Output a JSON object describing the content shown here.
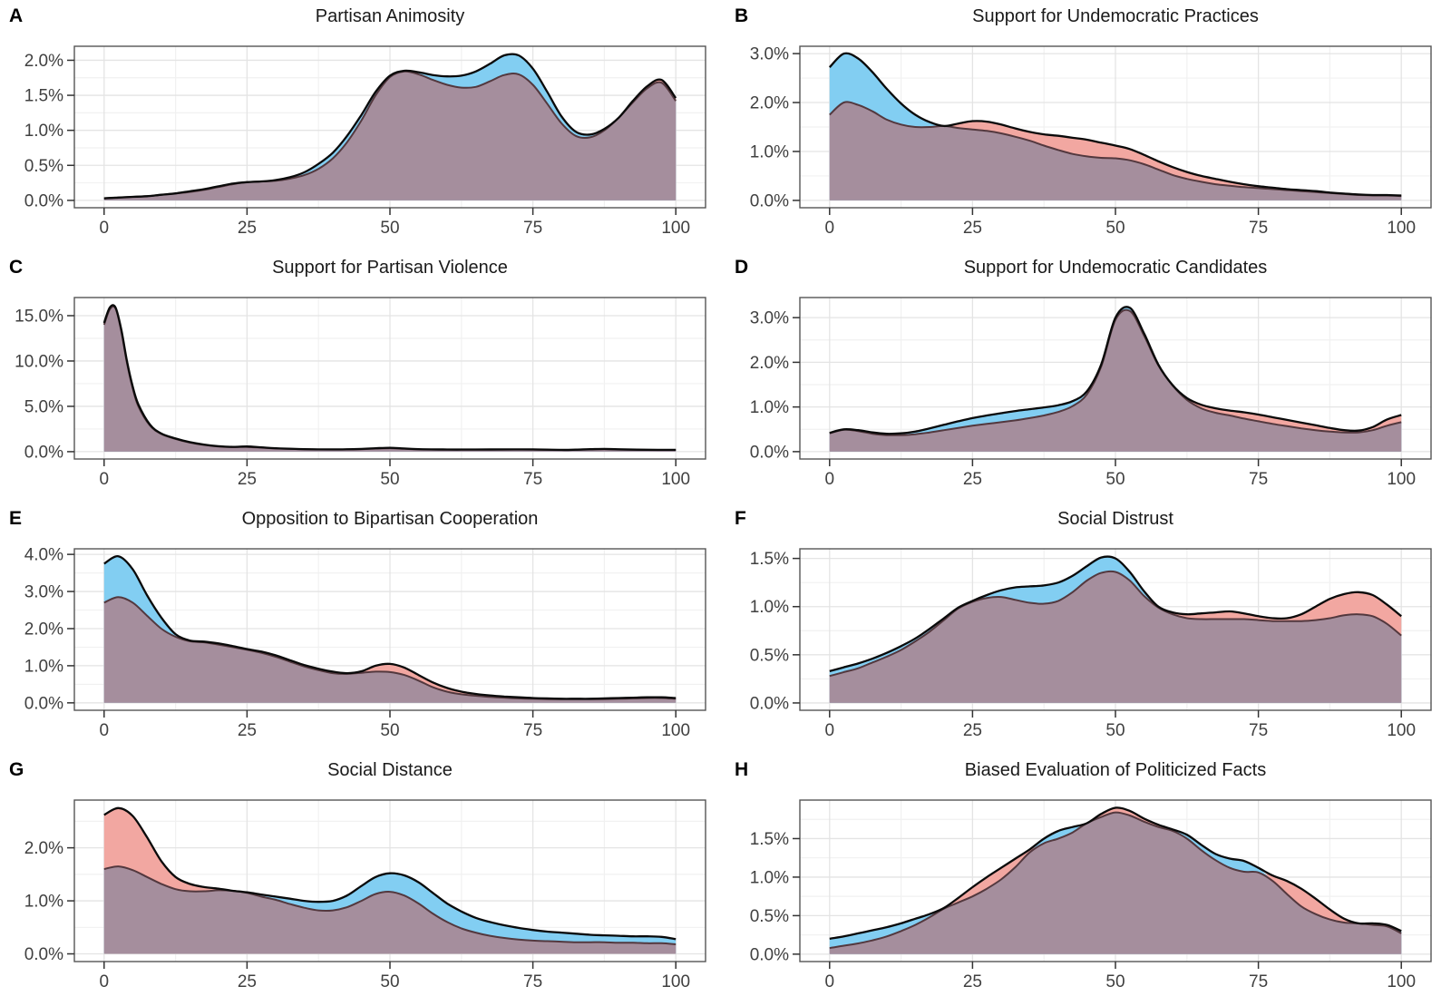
{
  "figure_title": "",
  "chart_data": {
    "type": "area",
    "subtype": "overlaid-density-distributions",
    "grid": "on",
    "legend": "none",
    "colors": {
      "blue_fill": "#82CEF2",
      "red_fill": "#F2A7A1",
      "overlap_fill": "#A58E9D",
      "upper_stroke": "#0A0A0A",
      "lower_stroke": "#53383E",
      "grid_major": "#E4E4E4",
      "grid_minor": "#F1F1F1",
      "panel_border": "#555555",
      "tick_mark": "#333333",
      "tick_label": "#404040",
      "background": "#FFFFFF"
    },
    "xlim": [
      -5.2,
      105.2
    ],
    "x_axis": {
      "domain": [
        0,
        100
      ],
      "ticks": [
        0,
        25,
        50,
        75,
        100
      ],
      "tick_labels": [
        "0",
        "25",
        "50",
        "75",
        "100"
      ],
      "minor_ticks": [
        12.5,
        37.5,
        62.5,
        87.5
      ]
    },
    "default_x": [
      0,
      2.5,
      5,
      7.5,
      10,
      12.5,
      15,
      17.5,
      20,
      22.5,
      25,
      27.5,
      30,
      32.5,
      35,
      37.5,
      40,
      42.5,
      45,
      47.5,
      50,
      52.5,
      55,
      57.5,
      60,
      62.5,
      65,
      67.5,
      70,
      72.5,
      75,
      77.5,
      80,
      82.5,
      85,
      87.5,
      90,
      92.5,
      95,
      97.5,
      100
    ],
    "series_names": [
      "blue",
      "red"
    ],
    "panels": [
      {
        "letter": "A",
        "title": "Partisan Animosity",
        "ylim": [
          -0.105,
          2.2
        ],
        "y_major": [
          0,
          0.5,
          1.0,
          1.5,
          2.0
        ],
        "y_labels": [
          "0.0%",
          "0.5%",
          "1.0%",
          "1.5%",
          "2.0%"
        ],
        "blue": [
          0.03,
          0.04,
          0.05,
          0.06,
          0.08,
          0.1,
          0.13,
          0.16,
          0.2,
          0.24,
          0.26,
          0.27,
          0.29,
          0.33,
          0.4,
          0.52,
          0.68,
          0.92,
          1.22,
          1.55,
          1.78,
          1.85,
          1.83,
          1.79,
          1.77,
          1.78,
          1.84,
          1.95,
          2.07,
          2.07,
          1.88,
          1.55,
          1.2,
          0.98,
          0.94,
          1.02,
          1.18,
          1.4,
          1.6,
          1.68,
          1.42
        ],
        "red": [
          0.03,
          0.04,
          0.05,
          0.06,
          0.08,
          0.1,
          0.12,
          0.15,
          0.19,
          0.23,
          0.26,
          0.27,
          0.28,
          0.31,
          0.36,
          0.45,
          0.6,
          0.83,
          1.14,
          1.5,
          1.76,
          1.84,
          1.8,
          1.72,
          1.65,
          1.61,
          1.62,
          1.7,
          1.79,
          1.8,
          1.65,
          1.38,
          1.1,
          0.92,
          0.9,
          1.0,
          1.18,
          1.42,
          1.63,
          1.72,
          1.46
        ]
      },
      {
        "letter": "B",
        "title": "Support for Undemocratic Practices",
        "ylim": [
          -0.15,
          3.15
        ],
        "y_major": [
          0,
          1.0,
          2.0,
          3.0
        ],
        "y_labels": [
          "0.0%",
          "1.0%",
          "2.0%",
          "3.0%"
        ],
        "blue": [
          2.72,
          3.0,
          2.9,
          2.62,
          2.28,
          1.98,
          1.75,
          1.6,
          1.52,
          1.48,
          1.45,
          1.42,
          1.37,
          1.3,
          1.22,
          1.12,
          1.03,
          0.95,
          0.9,
          0.87,
          0.86,
          0.82,
          0.74,
          0.63,
          0.52,
          0.44,
          0.38,
          0.33,
          0.3,
          0.27,
          0.25,
          0.23,
          0.21,
          0.19,
          0.17,
          0.15,
          0.13,
          0.11,
          0.1,
          0.1,
          0.09
        ],
        "red": [
          1.75,
          2.0,
          1.95,
          1.82,
          1.65,
          1.55,
          1.5,
          1.5,
          1.52,
          1.57,
          1.62,
          1.61,
          1.55,
          1.47,
          1.4,
          1.35,
          1.32,
          1.28,
          1.24,
          1.18,
          1.12,
          1.05,
          0.93,
          0.8,
          0.68,
          0.58,
          0.5,
          0.44,
          0.38,
          0.33,
          0.29,
          0.26,
          0.23,
          0.21,
          0.19,
          0.16,
          0.14,
          0.12,
          0.11,
          0.11,
          0.1
        ]
      },
      {
        "letter": "C",
        "title": "Support for Partisan Violence",
        "ylim": [
          -0.81,
          17.0
        ],
        "y_major": [
          0,
          5.0,
          10.0,
          15.0
        ],
        "y_labels": [
          "0.0%",
          "5.0%",
          "10.0%",
          "15.0%"
        ],
        "x": [
          0,
          1,
          2,
          3,
          4,
          5,
          6,
          8,
          10,
          12.5,
          15,
          17.5,
          20,
          22.5,
          25,
          27.5,
          30,
          35,
          40,
          45,
          47.5,
          50,
          52.5,
          55,
          60,
          65,
          70,
          75,
          80,
          82.5,
          85,
          87.5,
          90,
          95,
          100
        ],
        "blue": [
          14.2,
          15.9,
          15.9,
          13.5,
          10.0,
          7.2,
          5.2,
          3.0,
          2.0,
          1.45,
          1.05,
          0.78,
          0.6,
          0.53,
          0.57,
          0.48,
          0.38,
          0.28,
          0.25,
          0.3,
          0.38,
          0.43,
          0.35,
          0.28,
          0.24,
          0.24,
          0.25,
          0.25,
          0.2,
          0.22,
          0.27,
          0.3,
          0.26,
          0.21,
          0.2
        ],
        "red": [
          14.0,
          15.7,
          15.8,
          13.3,
          9.8,
          7.0,
          5.0,
          2.9,
          1.95,
          1.4,
          1.0,
          0.74,
          0.57,
          0.5,
          0.52,
          0.44,
          0.35,
          0.26,
          0.23,
          0.27,
          0.34,
          0.38,
          0.31,
          0.25,
          0.22,
          0.22,
          0.22,
          0.22,
          0.18,
          0.2,
          0.24,
          0.27,
          0.23,
          0.19,
          0.18
        ]
      },
      {
        "letter": "D",
        "title": "Support for Undemocratic Candidates",
        "ylim": [
          -0.165,
          3.45
        ],
        "y_major": [
          0,
          1.0,
          2.0,
          3.0
        ],
        "y_labels": [
          "0.0%",
          "1.0%",
          "2.0%",
          "3.0%"
        ],
        "blue": [
          0.42,
          0.5,
          0.48,
          0.43,
          0.4,
          0.41,
          0.45,
          0.52,
          0.6,
          0.68,
          0.75,
          0.81,
          0.86,
          0.91,
          0.95,
          0.99,
          1.04,
          1.13,
          1.35,
          1.95,
          3.0,
          3.22,
          2.65,
          1.95,
          1.48,
          1.16,
          0.97,
          0.87,
          0.81,
          0.74,
          0.68,
          0.62,
          0.57,
          0.52,
          0.48,
          0.45,
          0.43,
          0.43,
          0.48,
          0.58,
          0.66
        ],
        "red": [
          0.41,
          0.49,
          0.46,
          0.4,
          0.37,
          0.37,
          0.39,
          0.43,
          0.48,
          0.53,
          0.58,
          0.62,
          0.66,
          0.7,
          0.75,
          0.81,
          0.89,
          1.02,
          1.28,
          1.9,
          2.95,
          3.15,
          2.6,
          1.93,
          1.49,
          1.2,
          1.05,
          0.97,
          0.92,
          0.88,
          0.83,
          0.77,
          0.71,
          0.65,
          0.59,
          0.53,
          0.48,
          0.47,
          0.55,
          0.72,
          0.82
        ]
      },
      {
        "letter": "E",
        "title": "Opposition to Bipartisan Cooperation",
        "ylim": [
          -0.2,
          4.15
        ],
        "y_major": [
          0,
          1.0,
          2.0,
          3.0,
          4.0
        ],
        "y_labels": [
          "0.0%",
          "1.0%",
          "2.0%",
          "3.0%",
          "4.0%"
        ],
        "blue": [
          3.75,
          3.95,
          3.6,
          2.9,
          2.3,
          1.85,
          1.68,
          1.65,
          1.6,
          1.53,
          1.45,
          1.38,
          1.28,
          1.15,
          1.02,
          0.92,
          0.84,
          0.8,
          0.81,
          0.84,
          0.83,
          0.75,
          0.6,
          0.42,
          0.3,
          0.23,
          0.19,
          0.16,
          0.14,
          0.12,
          0.11,
          0.1,
          0.1,
          0.1,
          0.1,
          0.1,
          0.11,
          0.12,
          0.13,
          0.13,
          0.11
        ],
        "red": [
          2.7,
          2.85,
          2.7,
          2.35,
          2.0,
          1.78,
          1.66,
          1.63,
          1.57,
          1.5,
          1.43,
          1.35,
          1.24,
          1.11,
          0.98,
          0.88,
          0.8,
          0.78,
          0.85,
          1.0,
          1.05,
          0.95,
          0.75,
          0.55,
          0.4,
          0.3,
          0.24,
          0.2,
          0.17,
          0.15,
          0.13,
          0.12,
          0.11,
          0.11,
          0.11,
          0.12,
          0.13,
          0.14,
          0.15,
          0.15,
          0.13
        ]
      },
      {
        "letter": "F",
        "title": "Social Distrust",
        "ylim": [
          -0.076,
          1.6
        ],
        "y_major": [
          0,
          0.5,
          1.0,
          1.5
        ],
        "y_labels": [
          "0.0%",
          "0.5%",
          "1.0%",
          "1.5%"
        ],
        "blue": [
          0.33,
          0.37,
          0.41,
          0.46,
          0.52,
          0.59,
          0.67,
          0.77,
          0.88,
          0.99,
          1.06,
          1.12,
          1.17,
          1.2,
          1.21,
          1.22,
          1.25,
          1.32,
          1.42,
          1.51,
          1.5,
          1.36,
          1.16,
          1.0,
          0.92,
          0.88,
          0.87,
          0.87,
          0.87,
          0.87,
          0.86,
          0.85,
          0.85,
          0.85,
          0.86,
          0.88,
          0.91,
          0.92,
          0.9,
          0.82,
          0.7
        ],
        "red": [
          0.28,
          0.32,
          0.36,
          0.42,
          0.48,
          0.55,
          0.64,
          0.74,
          0.86,
          0.98,
          1.05,
          1.09,
          1.1,
          1.07,
          1.04,
          1.03,
          1.06,
          1.15,
          1.27,
          1.35,
          1.36,
          1.27,
          1.11,
          0.99,
          0.94,
          0.92,
          0.93,
          0.94,
          0.95,
          0.93,
          0.9,
          0.88,
          0.88,
          0.92,
          1.0,
          1.08,
          1.13,
          1.15,
          1.12,
          1.02,
          0.9
        ]
      },
      {
        "letter": "G",
        "title": "Social Distance",
        "ylim": [
          -0.145,
          2.9
        ],
        "y_major": [
          0,
          1.0,
          2.0
        ],
        "y_labels": [
          "0.0%",
          "1.0%",
          "2.0%"
        ],
        "blue": [
          1.6,
          1.65,
          1.58,
          1.45,
          1.32,
          1.22,
          1.18,
          1.18,
          1.2,
          1.19,
          1.16,
          1.12,
          1.08,
          1.04,
          1.0,
          0.98,
          1.0,
          1.1,
          1.28,
          1.45,
          1.52,
          1.48,
          1.35,
          1.15,
          0.95,
          0.8,
          0.68,
          0.6,
          0.54,
          0.49,
          0.45,
          0.42,
          0.4,
          0.38,
          0.36,
          0.35,
          0.34,
          0.33,
          0.33,
          0.32,
          0.28
        ],
        "red": [
          2.62,
          2.75,
          2.6,
          2.2,
          1.75,
          1.45,
          1.32,
          1.26,
          1.23,
          1.19,
          1.15,
          1.08,
          1.02,
          0.94,
          0.87,
          0.82,
          0.82,
          0.88,
          1.0,
          1.13,
          1.17,
          1.1,
          0.95,
          0.76,
          0.6,
          0.48,
          0.4,
          0.34,
          0.3,
          0.27,
          0.25,
          0.24,
          0.23,
          0.22,
          0.22,
          0.22,
          0.21,
          0.21,
          0.2,
          0.2,
          0.18
        ]
      },
      {
        "letter": "H",
        "title": "Biased Evaluation of Politicized Facts",
        "ylim": [
          -0.096,
          2.0
        ],
        "y_major": [
          0,
          0.5,
          1.0,
          1.5
        ],
        "y_labels": [
          "0.0%",
          "0.5%",
          "1.0%",
          "1.5%"
        ],
        "blue": [
          0.2,
          0.23,
          0.27,
          0.31,
          0.35,
          0.4,
          0.46,
          0.52,
          0.59,
          0.67,
          0.75,
          0.85,
          0.97,
          1.13,
          1.32,
          1.5,
          1.6,
          1.65,
          1.7,
          1.78,
          1.84,
          1.8,
          1.72,
          1.65,
          1.62,
          1.55,
          1.42,
          1.3,
          1.24,
          1.21,
          1.12,
          0.95,
          0.78,
          0.62,
          0.52,
          0.45,
          0.41,
          0.4,
          0.4,
          0.38,
          0.3
        ],
        "red": [
          0.08,
          0.11,
          0.14,
          0.18,
          0.23,
          0.3,
          0.38,
          0.48,
          0.6,
          0.73,
          0.87,
          1.0,
          1.12,
          1.24,
          1.36,
          1.44,
          1.5,
          1.58,
          1.7,
          1.82,
          1.9,
          1.86,
          1.76,
          1.68,
          1.6,
          1.5,
          1.35,
          1.22,
          1.12,
          1.07,
          1.06,
          1.02,
          0.95,
          0.85,
          0.72,
          0.58,
          0.46,
          0.4,
          0.38,
          0.36,
          0.27
        ]
      }
    ]
  }
}
